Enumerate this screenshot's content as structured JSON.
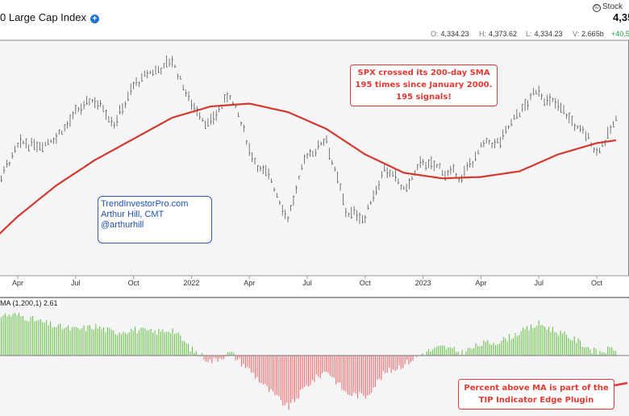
{
  "header": {
    "title": "0 Large Cap Index",
    "price": "4,35",
    "brand": "Stock",
    "ohlc": [
      {
        "label": "O:",
        "value": "4,334.23"
      },
      {
        "label": "H:",
        "value": "4,373.62"
      },
      {
        "label": "L:",
        "value": "4,334.23"
      },
      {
        "label": "V:",
        "value": "2.665b"
      }
    ],
    "change": "+40.5"
  },
  "annotations": {
    "spx_signal": [
      "SPX crossed its 200-day SMA",
      "195 times since January 2000.",
      "195 signals!"
    ],
    "credit": [
      "TrendInvestorPro.com",
      "Arthur Hill, CMT",
      "@arthurhill"
    ],
    "plugin": [
      "Percent above MA is part of the",
      "TIP Indicator Edge Plugin"
    ]
  },
  "colors": {
    "price_bars": "#555555",
    "sma": "#d23a2e",
    "indicator_positive": "#6cc24a",
    "indicator_negative": "#f26a6a",
    "annotation_red": "#e03a32",
    "annotation_blue": "#2d5fb8",
    "panel_background": "#f5f5f8"
  },
  "indicator_label": "MA (1,200,1) 2.61",
  "chart_data": [
    {
      "type": "line",
      "title": "0 Large Cap Index",
      "x_tick_labels": [
        "Apr",
        "Jul",
        "Oct",
        "2022",
        "Apr",
        "Jul",
        "Oct",
        "2023",
        "Apr",
        "Jul",
        "Oct"
      ],
      "series": [
        {
          "style": "price-bars",
          "x": [
            "2021-02",
            "2021-03",
            "2021-04",
            "2021-05",
            "2021-06",
            "2021-07",
            "2021-08",
            "2021-09",
            "2021-10",
            "2021-11",
            "2021-12",
            "2022-01",
            "2022-02",
            "2022-03",
            "2022-04",
            "2022-05",
            "2022-06",
            "2022-07",
            "2022-08",
            "2022-09",
            "2022-10",
            "2022-11",
            "2022-12",
            "2023-01",
            "2023-02",
            "2023-03",
            "2023-04",
            "2023-05",
            "2023-06",
            "2023-07",
            "2023-08",
            "2023-09",
            "2023-10",
            "2023-11"
          ],
          "y": [
            3850,
            3950,
            4150,
            4200,
            4280,
            4400,
            4500,
            4380,
            4600,
            4700,
            4780,
            4480,
            4350,
            4550,
            4150,
            3950,
            3700,
            4100,
            4250,
            3700,
            3680,
            4050,
            3850,
            4050,
            4000,
            3950,
            4150,
            4200,
            4400,
            4580,
            4450,
            4300,
            4150,
            4350
          ]
        },
        {
          "name": "SMA(200)",
          "style": "line",
          "x": [
            "2021-02",
            "2021-04",
            "2021-06",
            "2021-08",
            "2021-10",
            "2021-12",
            "2022-02",
            "2022-04",
            "2022-06",
            "2022-08",
            "2022-10",
            "2022-12",
            "2023-02",
            "2023-04",
            "2023-06",
            "2023-08",
            "2023-10",
            "2023-11"
          ],
          "y": [
            3420,
            3680,
            3900,
            4080,
            4230,
            4380,
            4460,
            4480,
            4420,
            4300,
            4120,
            3990,
            3950,
            3960,
            4000,
            4120,
            4200,
            4220
          ]
        }
      ]
    },
    {
      "type": "bar",
      "title": "MA (1,200,1) 2.61",
      "x": [
        "2021-02",
        "2021-03",
        "2021-04",
        "2021-05",
        "2021-06",
        "2021-07",
        "2021-08",
        "2021-09",
        "2021-10",
        "2021-11",
        "2021-12",
        "2022-01",
        "2022-02",
        "2022-03",
        "2022-04",
        "2022-05",
        "2022-06",
        "2022-07",
        "2022-08",
        "2022-09",
        "2022-10",
        "2022-11",
        "2022-12",
        "2023-01",
        "2023-02",
        "2023-03",
        "2023-04",
        "2023-05",
        "2023-06",
        "2023-07",
        "2023-08",
        "2023-09",
        "2023-10",
        "2023-11"
      ],
      "values": [
        12,
        14,
        14,
        12,
        10,
        9,
        10,
        8,
        9,
        8,
        9,
        2,
        -2,
        1,
        -5,
        -12,
        -18,
        -10,
        -5,
        -13,
        -14,
        -6,
        -3,
        1,
        3,
        1,
        4,
        5,
        8,
        11,
        8,
        5,
        1,
        2.61
      ]
    }
  ]
}
